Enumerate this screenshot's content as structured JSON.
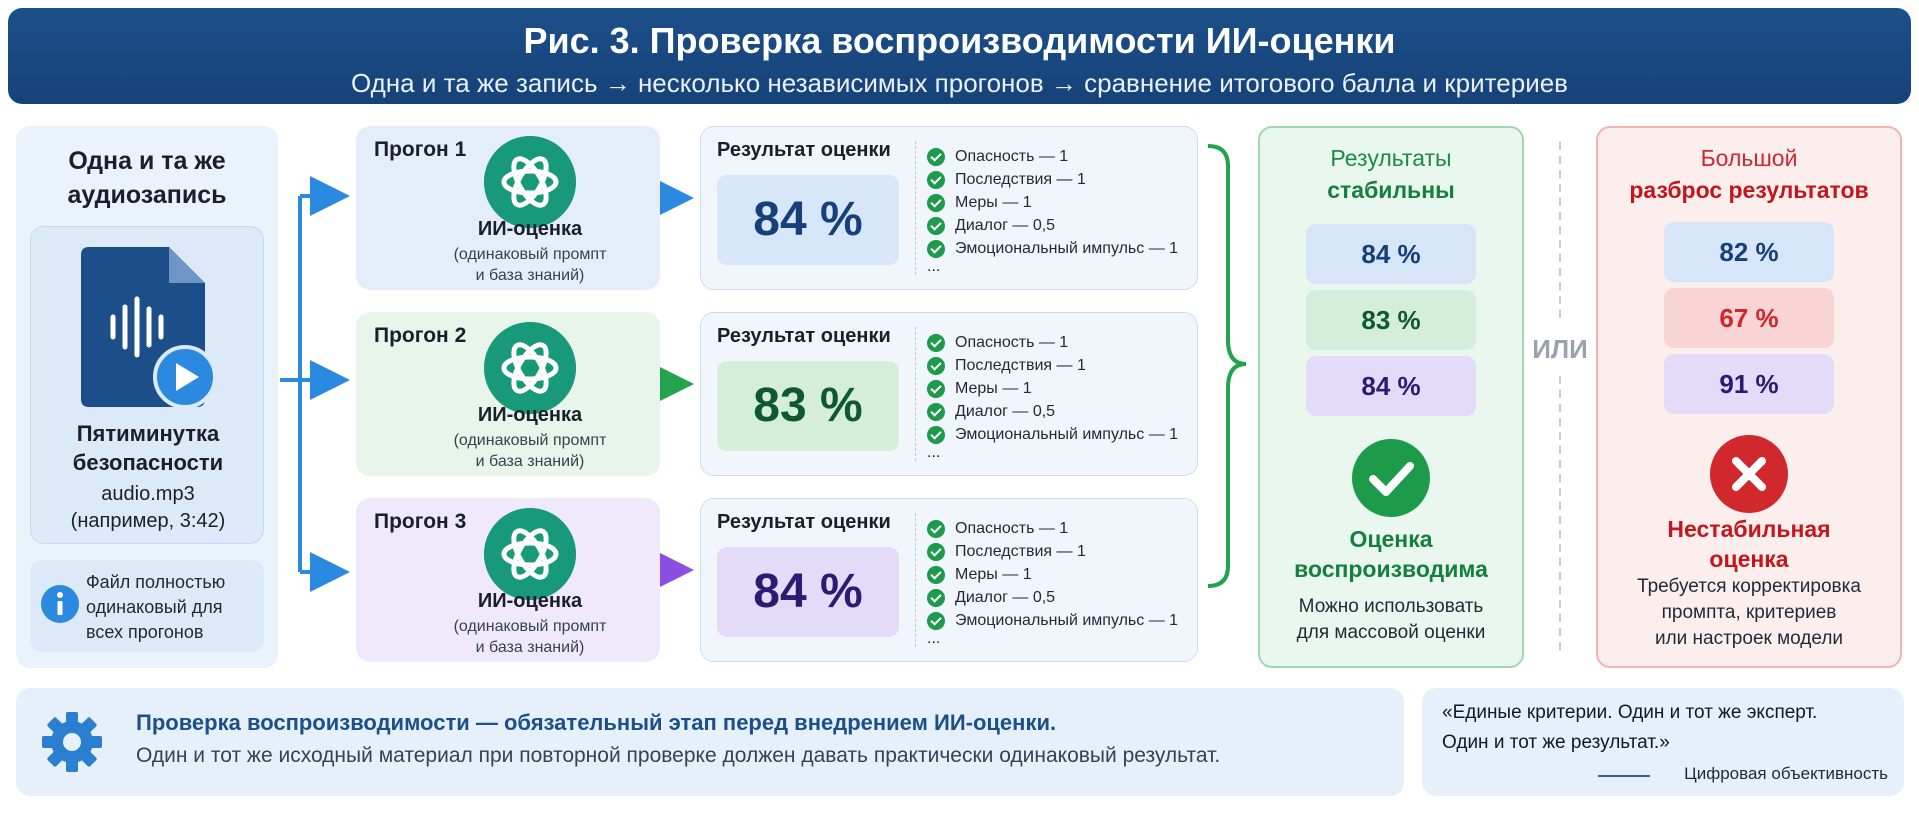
{
  "header": {
    "title": "Рис. 3. Проверка воспроизводимости ИИ-оценки",
    "subtitle": "Одна и та же запись → несколько независимых прогонов → сравнение итогового балла и критериев"
  },
  "source": {
    "heading_line1": "Одна и та же",
    "heading_line2": "аудиозапись",
    "audio_title_line1": "Пятиминутка",
    "audio_title_line2": "безопасности",
    "file_name": "audio.mp3",
    "duration_note": "(например, 3:42)",
    "info_line1": "Файл полностью",
    "info_line2": "одинаковый для",
    "info_line3": "всех прогонов"
  },
  "runs": [
    {
      "label": "Прогон 1",
      "ai_name": "ИИ-оценка",
      "ai_sub1": "(одинаковый промпт",
      "ai_sub2": "и база знаний)",
      "color": "#e4eefb",
      "arrow": "#2b8ae0"
    },
    {
      "label": "Прогон 2",
      "ai_name": "ИИ-оценка",
      "ai_sub1": "(одинаковый промпт",
      "ai_sub2": "и база знаний)",
      "color": "#e7f5ea",
      "arrow": "#23a24f"
    },
    {
      "label": "Прогон 3",
      "ai_name": "ИИ-оценка",
      "ai_sub1": "(одинаковый промпт",
      "ai_sub2": "и база знаний)",
      "color": "#efe9fb",
      "arrow": "#8a4fe0"
    }
  ],
  "results": [
    {
      "title": "Результат оценки",
      "score": "84 %",
      "score_bg": "#d7e6f8",
      "score_color": "#173f7a",
      "criteria": [
        "Опасность — 1",
        "Последствия — 1",
        "Меры — 1",
        "Диалог — 0,5",
        "Эмоциональный импульс — 1"
      ],
      "more": "..."
    },
    {
      "title": "Результат оценки",
      "score": "83 %",
      "score_bg": "#d4eedb",
      "score_color": "#0f5a2c",
      "criteria": [
        "Опасность — 1",
        "Последствия — 1",
        "Меры — 1",
        "Диалог — 0,5",
        "Эмоциональный импульс — 1"
      ],
      "more": "..."
    },
    {
      "title": "Результат оценки",
      "score": "84 %",
      "score_bg": "#e4dbf8",
      "score_color": "#2b1b73",
      "criteria": [
        "Опасность — 1",
        "Последствия — 1",
        "Меры — 1",
        "Диалог — 0,5",
        "Эмоциональный импульс — 1"
      ],
      "more": "..."
    }
  ],
  "stable": {
    "title_line1": "Результаты",
    "title_line2": "стабильны",
    "values": [
      "84 %",
      "83 %",
      "84 %"
    ],
    "verdict_line1": "Оценка",
    "verdict_line2": "воспроизводима",
    "note_line1": "Можно использовать",
    "note_line2": "для массовой оценки",
    "accent": "#1d9a4a"
  },
  "or_label": "ИЛИ",
  "unstable": {
    "title_line1": "Большой",
    "title_line2": "разброс результатов",
    "values": [
      "82 %",
      "67 %",
      "91 %"
    ],
    "verdict_line1": "Нестабильная",
    "verdict_line2": "оценка",
    "note_line1": "Требуется корректировка",
    "note_line2": "промпта, критериев",
    "note_line3": "или настроек модели",
    "accent": "#d0282c"
  },
  "bottom": {
    "line1": "Проверка воспроизводимости — обязательный этап перед внедрением ИИ-оценки.",
    "line2": "Один и тот же исходный материал при повторной проверке должен давать практически одинаковый результат."
  },
  "quote": {
    "text_line1": "«Единые критерии. Один и тот же эксперт.",
    "text_line2": "Один и тот же результат.»",
    "source": "Цифровая объективность"
  }
}
